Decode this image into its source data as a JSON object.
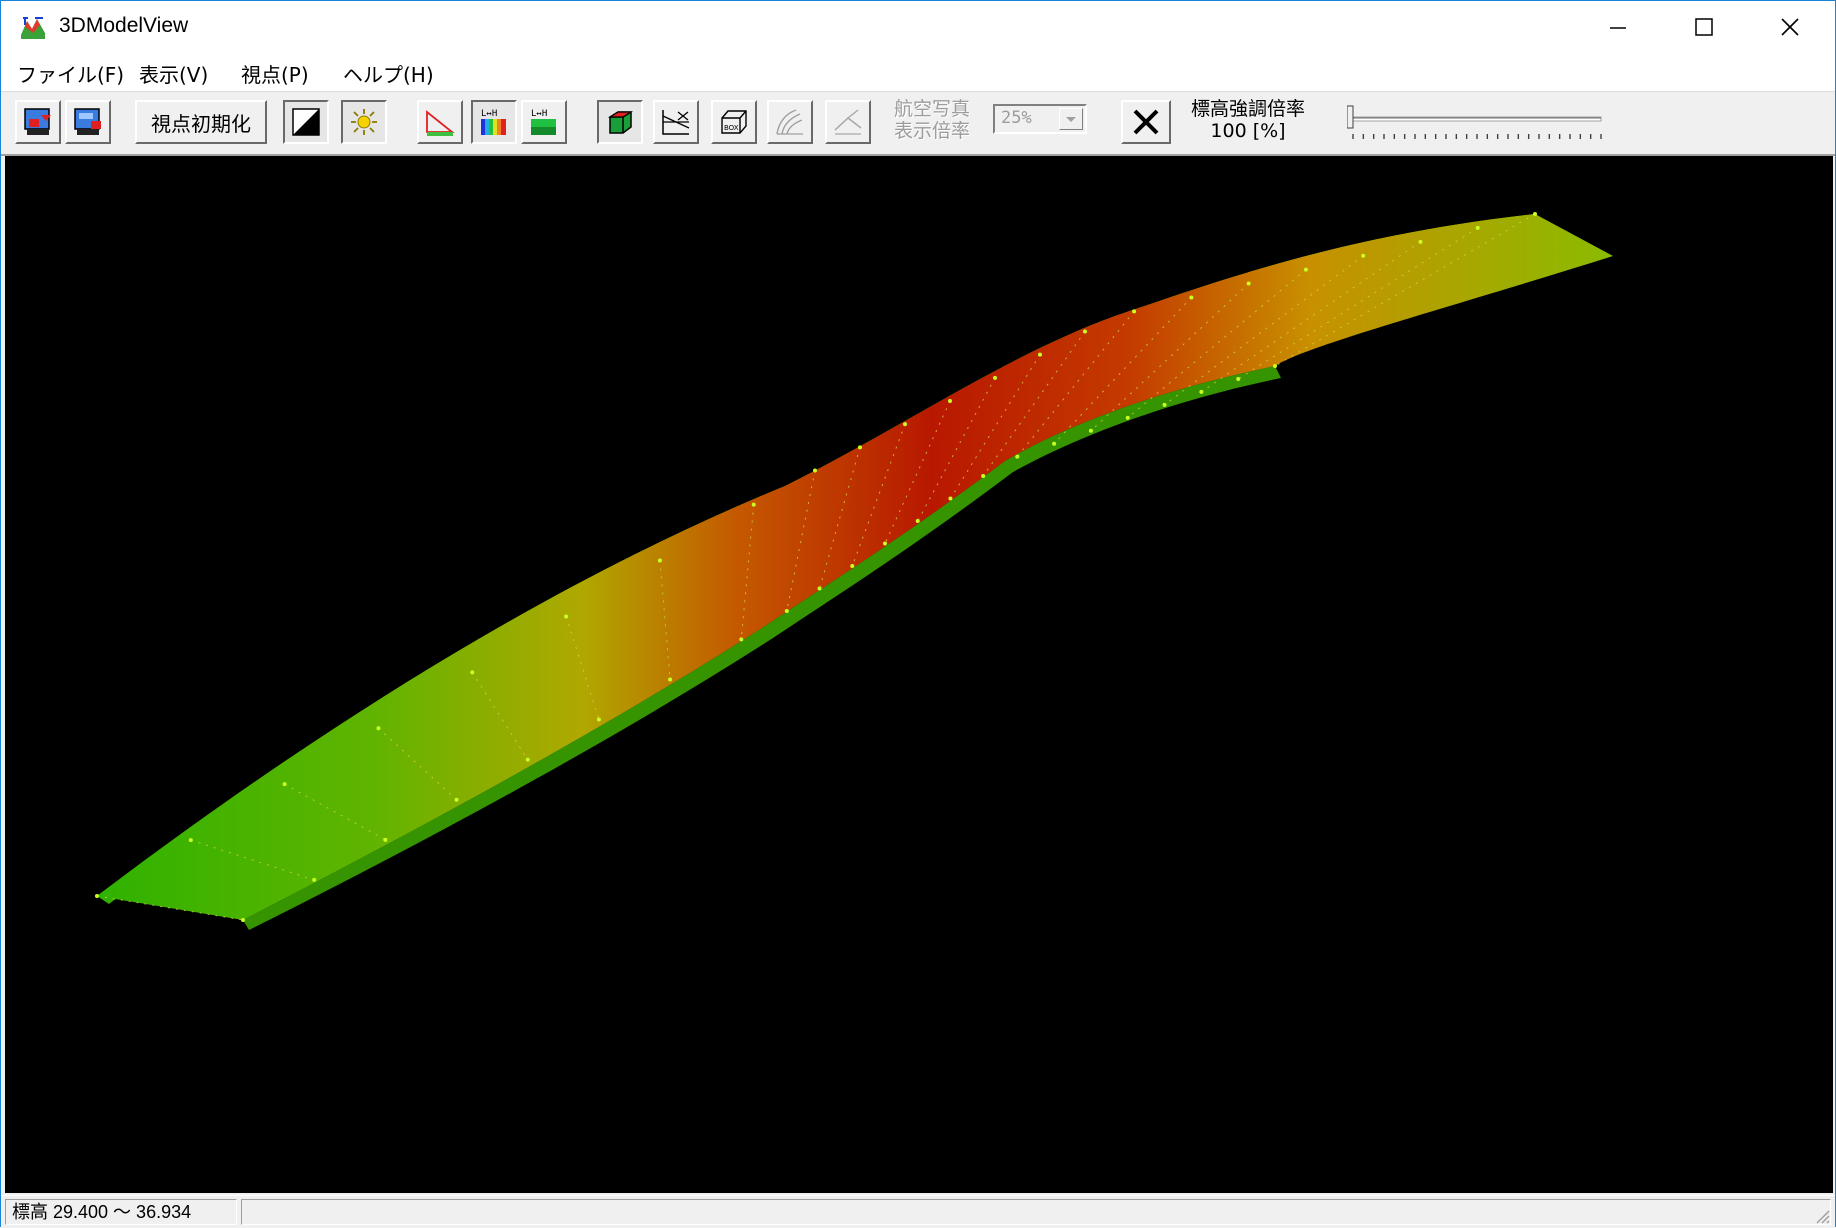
{
  "window": {
    "title": "3DModelView",
    "minimize_icon": "minimize-icon",
    "maximize_icon": "maximize-icon",
    "close_icon": "close-icon"
  },
  "menu": [
    {
      "label": "ファイル(F)"
    },
    {
      "label": "表示(V)"
    },
    {
      "label": "視点(P)"
    },
    {
      "label": "ヘルプ(H)"
    }
  ],
  "toolbar": {
    "reset_view_label": "視点初期化",
    "aerial_label_line1": "航空写真",
    "aerial_label_line2": "表示倍率",
    "aerial_zoom_value": "25%",
    "elevation_emphasis_line1": "標高強調倍率",
    "elevation_emphasis_line2": "100 [%]",
    "elevation_emphasis_slider_value": 0.0
  },
  "status": {
    "elevation_range": "標高 29.400 ～ 36.934"
  },
  "colors": {
    "viewport_background": "#000000",
    "low_elevation": "#3cb200",
    "mid_elevation": "#b4b400",
    "high_elevation": "#c81e00",
    "vertex_points": "#c8ff00"
  }
}
